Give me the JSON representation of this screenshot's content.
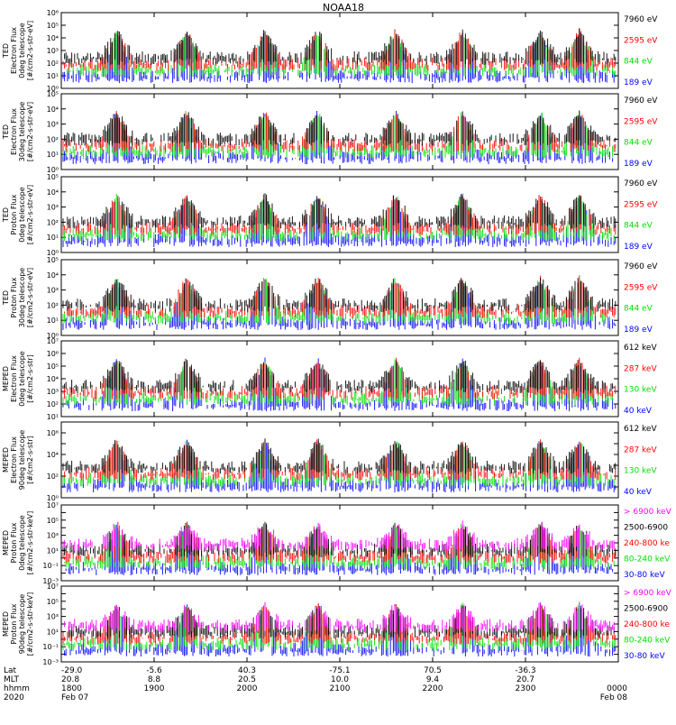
{
  "title": "NOAA18",
  "colors": {
    "black": "#000000",
    "blue": "#0000ff",
    "green": "#00e000",
    "red": "#ff0000",
    "magenta": "#ff00ff"
  },
  "footer": {
    "row_labels": [
      "Lat",
      "MLT",
      "hhmm",
      "2020"
    ],
    "columns": [
      {
        "lat": "-29.0",
        "mlt": "20.8",
        "hhmm": "1800",
        "date": "Feb 07"
      },
      {
        "lat": "-5.6",
        "mlt": "8.8",
        "hhmm": "1900",
        "date": ""
      },
      {
        "lat": "40.3",
        "mlt": "20.5",
        "hhmm": "2000",
        "date": ""
      },
      {
        "lat": "-75.1",
        "mlt": "10.0",
        "hhmm": "2100",
        "date": ""
      },
      {
        "lat": "70.5",
        "mlt": "9.4",
        "hhmm": "2200",
        "date": ""
      },
      {
        "lat": "-36.3",
        "mlt": "20.7",
        "hhmm": "2300",
        "date": ""
      },
      {
        "lat": "",
        "mlt": "",
        "hhmm": "0000",
        "date": "Feb 08"
      }
    ]
  },
  "chart_data": [
    {
      "type": "scatter",
      "ylabel": [
        "TED",
        "Electron Flux",
        "0deg telescope",
        "[#/cm2-s-str-eV]"
      ],
      "y_log_range": [
        0,
        6
      ],
      "legend": [
        {
          "label": "7960 eV",
          "color": "#000000"
        },
        {
          "label": "2595 eV",
          "color": "#ff0000"
        },
        {
          "label": "844 eV",
          "color": "#00e000"
        },
        {
          "label": "189 eV",
          "color": "#0000ff"
        }
      ]
    },
    {
      "type": "scatter",
      "ylabel": [
        "TED",
        "Electron Flux",
        "30deg telescope",
        "[#/cm2-s-str-eV]"
      ],
      "y_log_range": [
        0,
        5
      ],
      "legend": [
        {
          "label": "7960 eV",
          "color": "#000000"
        },
        {
          "label": "2595 eV",
          "color": "#ff0000"
        },
        {
          "label": "844 eV",
          "color": "#00e000"
        },
        {
          "label": "189 eV",
          "color": "#0000ff"
        }
      ]
    },
    {
      "type": "scatter",
      "ylabel": [
        "TED",
        "Proton Flux",
        "0deg telescope",
        "[#/cm2-s-str-eV]"
      ],
      "y_log_range": [
        0,
        5
      ],
      "legend": [
        {
          "label": "7960 eV",
          "color": "#000000"
        },
        {
          "label": "2595 eV",
          "color": "#ff0000"
        },
        {
          "label": "844 eV",
          "color": "#00e000"
        },
        {
          "label": "189 eV",
          "color": "#0000ff"
        }
      ]
    },
    {
      "type": "scatter",
      "ylabel": [
        "TED",
        "Proton Flux",
        "30deg telescope",
        "[#/cm2-s-str-eV]"
      ],
      "y_log_range": [
        0,
        5
      ],
      "legend": [
        {
          "label": "7960 eV",
          "color": "#000000"
        },
        {
          "label": "2595 eV",
          "color": "#ff0000"
        },
        {
          "label": "844 eV",
          "color": "#00e000"
        },
        {
          "label": "189 eV",
          "color": "#0000ff"
        }
      ]
    },
    {
      "type": "scatter",
      "ylabel": [
        "MEPED",
        "Electron Flux",
        "0deg telescope",
        "[#/cm2-s-str]"
      ],
      "y_log_range": [
        1,
        7
      ],
      "legend": [
        {
          "label": "612 keV",
          "color": "#000000"
        },
        {
          "label": "287 keV",
          "color": "#ff0000"
        },
        {
          "label": "130 keV",
          "color": "#00e000"
        },
        {
          "label": "40 keV",
          "color": "#0000ff"
        }
      ]
    },
    {
      "type": "scatter",
      "ylabel": [
        "MEPED",
        "Electron Flux",
        "90deg telescope",
        "[#/cm2-s-str]"
      ],
      "y_log_range": [
        0,
        7
      ],
      "legend": [
        {
          "label": "612 keV",
          "color": "#000000"
        },
        {
          "label": "287 keV",
          "color": "#ff0000"
        },
        {
          "label": "130 keV",
          "color": "#00e000"
        },
        {
          "label": "40 keV",
          "color": "#0000ff"
        }
      ]
    },
    {
      "type": "scatter",
      "ylabel": [
        "MEPED",
        "Proton Flux",
        "0deg telescope",
        "[#/cm2-s-str-keV]"
      ],
      "y_log_range": [
        -3,
        7
      ],
      "legend": [
        {
          "label": "> 6900 keV",
          "color": "#ff00ff"
        },
        {
          "label": "2500-6900",
          "color": "#000000"
        },
        {
          "label": "240-800 ke",
          "color": "#ff0000"
        },
        {
          "label": "80-240 keV",
          "color": "#00e000"
        },
        {
          "label": "30-80 keV",
          "color": "#0000ff"
        }
      ]
    },
    {
      "type": "scatter",
      "ylabel": [
        "MEPED",
        "Proton Flux",
        "90deg telescope",
        "[#/cm2-s-str-keV]"
      ],
      "y_log_range": [
        -3,
        7
      ],
      "legend": [
        {
          "label": "> 6900 keV",
          "color": "#ff00ff"
        },
        {
          "label": "2500-6900",
          "color": "#000000"
        },
        {
          "label": "240-800 ke",
          "color": "#ff0000"
        },
        {
          "label": "80-240 keV",
          "color": "#00e000"
        },
        {
          "label": "30-80 keV",
          "color": "#0000ff"
        }
      ]
    }
  ]
}
